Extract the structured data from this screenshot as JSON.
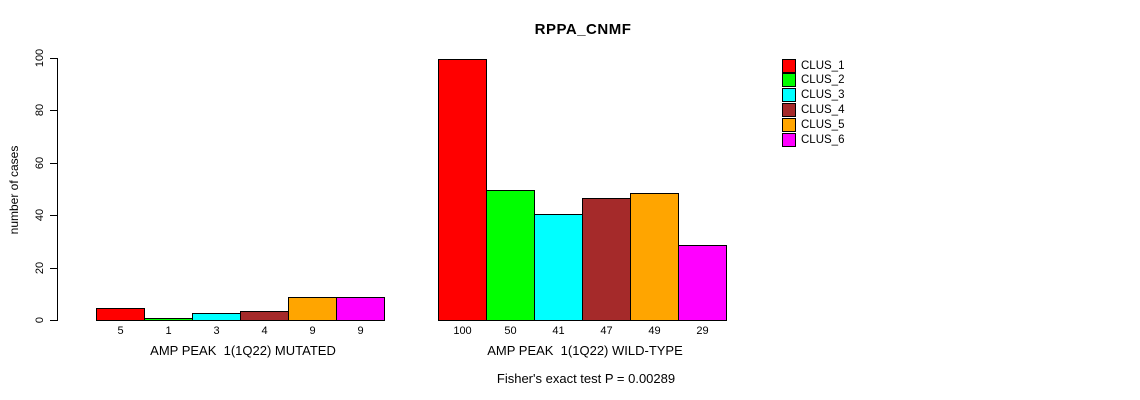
{
  "chart_data": {
    "type": "bar",
    "title": "RPPA_CNMF",
    "ylabel": "number of cases",
    "ylim": [
      0,
      100
    ],
    "yticks": [
      0,
      20,
      40,
      60,
      80,
      100
    ],
    "grid": false,
    "legend_position": "right",
    "legend": [
      "CLUS_1",
      "CLUS_2",
      "CLUS_3",
      "CLUS_4",
      "CLUS_5",
      "CLUS_6"
    ],
    "colors": [
      "#ff0000",
      "#00ff00",
      "#00ffff",
      "#a52a2a",
      "#ffa500",
      "#ff00ff"
    ],
    "groups": [
      {
        "category": "AMP PEAK  1(1Q22) MUTATED",
        "values": [
          5,
          1,
          3,
          4,
          9,
          9
        ]
      },
      {
        "category": "AMP PEAK  1(1Q22) WILD-TYPE",
        "values": [
          100,
          50,
          41,
          47,
          49,
          29
        ]
      }
    ],
    "bar_value_labels_shown": true,
    "annotation": "Fisher's exact test P = 0.00289"
  }
}
